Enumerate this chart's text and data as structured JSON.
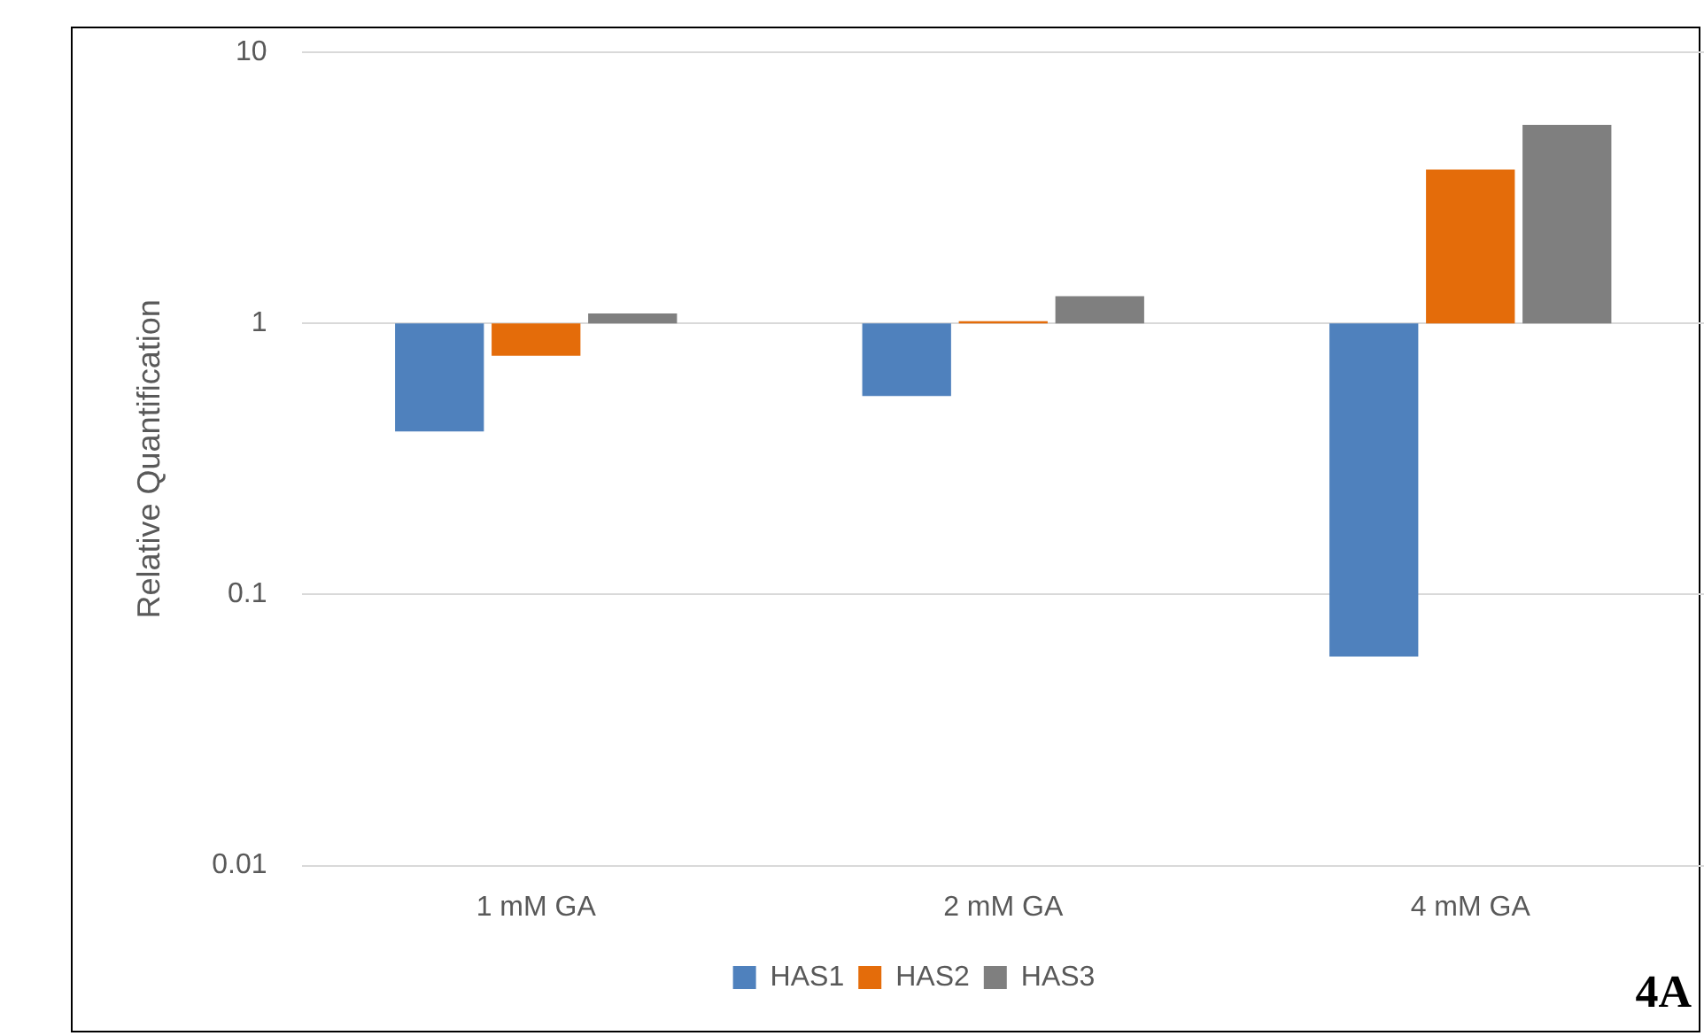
{
  "chart_data": {
    "type": "bar",
    "ylabel": "Relative Quantification",
    "categories": [
      "1 mM GA",
      "2 mM GA",
      "4 mM GA"
    ],
    "series": [
      {
        "name": "HAS1",
        "color": "#4f81bd",
        "values": [
          -0.6,
          -0.46,
          -0.941
        ],
        "base": [
          1,
          1,
          1
        ]
      },
      {
        "name": "HAS2",
        "color": "#e46c0a",
        "values": [
          -0.24,
          0.02,
          2.7
        ],
        "base": [
          1,
          1,
          1
        ]
      },
      {
        "name": "HAS3",
        "color": "#7f7f7f",
        "values": [
          0.09,
          0.26,
          4.4
        ],
        "base": [
          1,
          1,
          1
        ]
      }
    ],
    "log": true,
    "ylim": [
      0.01,
      10
    ],
    "yticks": [
      0.01,
      0.1,
      1,
      10
    ],
    "grid": "y",
    "legend": "bottom",
    "annotations": [
      "4A"
    ]
  }
}
